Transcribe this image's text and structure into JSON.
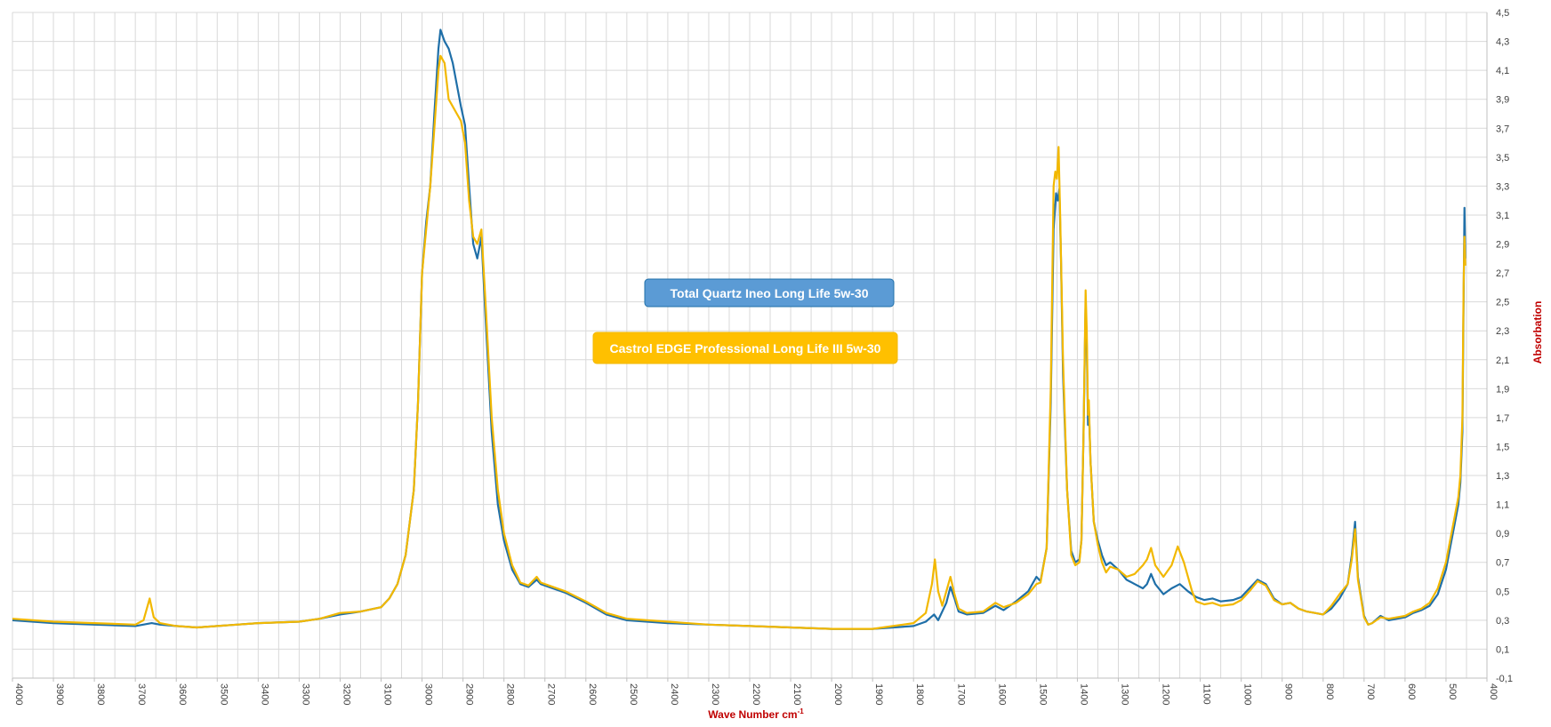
{
  "chart_data": {
    "type": "line",
    "title": "",
    "xlabel": "Wave Number cm",
    "xlabel_superscript": "-1",
    "ylabel": "Absorbation",
    "xlim": [
      4000,
      400
    ],
    "ylim": [
      -0.1,
      4.5
    ],
    "x_reversed": true,
    "grid": true,
    "legend_placement": "center",
    "x_ticks": [
      "4000",
      "3900",
      "3800",
      "3700",
      "3600",
      "3500",
      "3400",
      "3300",
      "3200",
      "3100",
      "3000",
      "2900",
      "2800",
      "2700",
      "2600",
      "2500",
      "2400",
      "2300",
      "2200",
      "2100",
      "2000",
      "1900",
      "1800",
      "1700",
      "1600",
      "1500",
      "1400",
      "1300",
      "1200",
      "1100",
      "1000",
      "900",
      "800",
      "700",
      "600",
      "500",
      "400"
    ],
    "y_ticks": [
      "-0,1",
      "0,1",
      "0,3",
      "0,5",
      "0,7",
      "0,9",
      "1,1",
      "1,3",
      "1,5",
      "1,7",
      "1,9",
      "2,1",
      "2,3",
      "2,5",
      "2,7",
      "2,9",
      "3,1",
      "3,3",
      "3,5",
      "3,7",
      "3,9",
      "4,1",
      "4,3",
      "4,5"
    ],
    "series": [
      {
        "name": "Total Quartz Ineo Long Life 5w-30",
        "color": "#1f6fa8",
        "legend_bg": "#5b9bd5",
        "points": [
          [
            4000,
            0.3
          ],
          [
            3900,
            0.28
          ],
          [
            3800,
            0.27
          ],
          [
            3700,
            0.26
          ],
          [
            3660,
            0.28
          ],
          [
            3640,
            0.27
          ],
          [
            3600,
            0.26
          ],
          [
            3550,
            0.25
          ],
          [
            3500,
            0.26
          ],
          [
            3400,
            0.28
          ],
          [
            3300,
            0.29
          ],
          [
            3250,
            0.31
          ],
          [
            3200,
            0.34
          ],
          [
            3150,
            0.36
          ],
          [
            3100,
            0.39
          ],
          [
            3080,
            0.45
          ],
          [
            3060,
            0.55
          ],
          [
            3040,
            0.75
          ],
          [
            3020,
            1.2
          ],
          [
            3010,
            1.8
          ],
          [
            3000,
            2.7
          ],
          [
            2990,
            3.05
          ],
          [
            2980,
            3.3
          ],
          [
            2970,
            3.8
          ],
          [
            2960,
            4.25
          ],
          [
            2955,
            4.38
          ],
          [
            2945,
            4.3
          ],
          [
            2935,
            4.25
          ],
          [
            2925,
            4.15
          ],
          [
            2915,
            4.0
          ],
          [
            2905,
            3.85
          ],
          [
            2895,
            3.72
          ],
          [
            2885,
            3.3
          ],
          [
            2875,
            2.9
          ],
          [
            2865,
            2.8
          ],
          [
            2855,
            2.95
          ],
          [
            2845,
            2.4
          ],
          [
            2830,
            1.6
          ],
          [
            2815,
            1.1
          ],
          [
            2800,
            0.85
          ],
          [
            2780,
            0.65
          ],
          [
            2760,
            0.55
          ],
          [
            2740,
            0.53
          ],
          [
            2720,
            0.58
          ],
          [
            2710,
            0.55
          ],
          [
            2690,
            0.53
          ],
          [
            2650,
            0.49
          ],
          [
            2600,
            0.42
          ],
          [
            2550,
            0.34
          ],
          [
            2500,
            0.3
          ],
          [
            2400,
            0.28
          ],
          [
            2300,
            0.27
          ],
          [
            2200,
            0.26
          ],
          [
            2100,
            0.25
          ],
          [
            2000,
            0.24
          ],
          [
            1900,
            0.24
          ],
          [
            1850,
            0.25
          ],
          [
            1800,
            0.26
          ],
          [
            1770,
            0.29
          ],
          [
            1750,
            0.34
          ],
          [
            1740,
            0.3
          ],
          [
            1720,
            0.42
          ],
          [
            1710,
            0.53
          ],
          [
            1700,
            0.45
          ],
          [
            1690,
            0.36
          ],
          [
            1670,
            0.34
          ],
          [
            1630,
            0.35
          ],
          [
            1600,
            0.4
          ],
          [
            1580,
            0.37
          ],
          [
            1550,
            0.43
          ],
          [
            1520,
            0.5
          ],
          [
            1500,
            0.6
          ],
          [
            1490,
            0.57
          ],
          [
            1475,
            0.8
          ],
          [
            1465,
            1.8
          ],
          [
            1458,
            3.0
          ],
          [
            1452,
            3.25
          ],
          [
            1448,
            3.2
          ],
          [
            1444,
            3.28
          ],
          [
            1440,
            2.8
          ],
          [
            1435,
            2.0
          ],
          [
            1425,
            1.2
          ],
          [
            1415,
            0.78
          ],
          [
            1405,
            0.7
          ],
          [
            1395,
            0.72
          ],
          [
            1390,
            0.85
          ],
          [
            1385,
            1.6
          ],
          [
            1380,
            2.5
          ],
          [
            1377,
            2.2
          ],
          [
            1374,
            1.65
          ],
          [
            1372,
            1.78
          ],
          [
            1368,
            1.4
          ],
          [
            1360,
            0.98
          ],
          [
            1350,
            0.85
          ],
          [
            1340,
            0.75
          ],
          [
            1330,
            0.68
          ],
          [
            1320,
            0.7
          ],
          [
            1300,
            0.65
          ],
          [
            1280,
            0.58
          ],
          [
            1260,
            0.55
          ],
          [
            1240,
            0.52
          ],
          [
            1230,
            0.55
          ],
          [
            1220,
            0.62
          ],
          [
            1210,
            0.55
          ],
          [
            1190,
            0.48
          ],
          [
            1170,
            0.52
          ],
          [
            1150,
            0.55
          ],
          [
            1130,
            0.5
          ],
          [
            1110,
            0.46
          ],
          [
            1090,
            0.44
          ],
          [
            1070,
            0.45
          ],
          [
            1050,
            0.43
          ],
          [
            1020,
            0.44
          ],
          [
            1000,
            0.46
          ],
          [
            980,
            0.52
          ],
          [
            960,
            0.58
          ],
          [
            940,
            0.55
          ],
          [
            920,
            0.45
          ],
          [
            900,
            0.41
          ],
          [
            880,
            0.42
          ],
          [
            860,
            0.38
          ],
          [
            840,
            0.36
          ],
          [
            820,
            0.35
          ],
          [
            800,
            0.34
          ],
          [
            780,
            0.38
          ],
          [
            760,
            0.45
          ],
          [
            740,
            0.55
          ],
          [
            730,
            0.75
          ],
          [
            722,
            0.98
          ],
          [
            715,
            0.6
          ],
          [
            700,
            0.33
          ],
          [
            690,
            0.27
          ],
          [
            680,
            0.28
          ],
          [
            660,
            0.33
          ],
          [
            640,
            0.3
          ],
          [
            620,
            0.31
          ],
          [
            600,
            0.32
          ],
          [
            580,
            0.35
          ],
          [
            560,
            0.37
          ],
          [
            540,
            0.4
          ],
          [
            520,
            0.48
          ],
          [
            500,
            0.65
          ],
          [
            490,
            0.8
          ],
          [
            480,
            0.95
          ],
          [
            470,
            1.1
          ],
          [
            465,
            1.25
          ],
          [
            460,
            1.6
          ],
          [
            457,
            2.5
          ],
          [
            455,
            3.15
          ],
          [
            453,
            2.8
          ]
        ]
      },
      {
        "name": "Castrol EDGE Professional Long Life III 5w-30",
        "color": "#f2b800",
        "legend_bg": "#ffc000",
        "points": [
          [
            4000,
            0.31
          ],
          [
            3900,
            0.29
          ],
          [
            3800,
            0.28
          ],
          [
            3700,
            0.27
          ],
          [
            3680,
            0.3
          ],
          [
            3665,
            0.45
          ],
          [
            3655,
            0.32
          ],
          [
            3640,
            0.28
          ],
          [
            3600,
            0.26
          ],
          [
            3550,
            0.25
          ],
          [
            3500,
            0.26
          ],
          [
            3400,
            0.28
          ],
          [
            3300,
            0.29
          ],
          [
            3250,
            0.31
          ],
          [
            3200,
            0.35
          ],
          [
            3150,
            0.36
          ],
          [
            3100,
            0.39
          ],
          [
            3080,
            0.45
          ],
          [
            3060,
            0.55
          ],
          [
            3040,
            0.75
          ],
          [
            3020,
            1.2
          ],
          [
            3010,
            1.8
          ],
          [
            3000,
            2.7
          ],
          [
            2990,
            3.0
          ],
          [
            2980,
            3.3
          ],
          [
            2970,
            3.7
          ],
          [
            2960,
            4.1
          ],
          [
            2955,
            4.2
          ],
          [
            2945,
            4.15
          ],
          [
            2935,
            3.9
          ],
          [
            2925,
            3.85
          ],
          [
            2915,
            3.8
          ],
          [
            2905,
            3.75
          ],
          [
            2895,
            3.6
          ],
          [
            2885,
            3.2
          ],
          [
            2875,
            2.95
          ],
          [
            2865,
            2.9
          ],
          [
            2855,
            3.0
          ],
          [
            2845,
            2.5
          ],
          [
            2830,
            1.7
          ],
          [
            2815,
            1.2
          ],
          [
            2800,
            0.9
          ],
          [
            2780,
            0.68
          ],
          [
            2760,
            0.56
          ],
          [
            2740,
            0.54
          ],
          [
            2720,
            0.6
          ],
          [
            2710,
            0.56
          ],
          [
            2690,
            0.54
          ],
          [
            2650,
            0.5
          ],
          [
            2600,
            0.43
          ],
          [
            2550,
            0.35
          ],
          [
            2500,
            0.31
          ],
          [
            2400,
            0.29
          ],
          [
            2300,
            0.27
          ],
          [
            2200,
            0.26
          ],
          [
            2100,
            0.25
          ],
          [
            2000,
            0.24
          ],
          [
            1900,
            0.24
          ],
          [
            1850,
            0.26
          ],
          [
            1800,
            0.28
          ],
          [
            1770,
            0.35
          ],
          [
            1755,
            0.55
          ],
          [
            1748,
            0.72
          ],
          [
            1740,
            0.5
          ],
          [
            1730,
            0.4
          ],
          [
            1720,
            0.5
          ],
          [
            1710,
            0.6
          ],
          [
            1700,
            0.48
          ],
          [
            1690,
            0.38
          ],
          [
            1670,
            0.35
          ],
          [
            1630,
            0.36
          ],
          [
            1600,
            0.42
          ],
          [
            1580,
            0.39
          ],
          [
            1550,
            0.42
          ],
          [
            1520,
            0.48
          ],
          [
            1500,
            0.55
          ],
          [
            1490,
            0.56
          ],
          [
            1475,
            0.8
          ],
          [
            1465,
            1.9
          ],
          [
            1458,
            3.3
          ],
          [
            1454,
            3.4
          ],
          [
            1450,
            3.35
          ],
          [
            1446,
            3.57
          ],
          [
            1442,
            3.1
          ],
          [
            1435,
            2.1
          ],
          [
            1425,
            1.2
          ],
          [
            1415,
            0.75
          ],
          [
            1405,
            0.68
          ],
          [
            1395,
            0.7
          ],
          [
            1390,
            0.85
          ],
          [
            1385,
            1.6
          ],
          [
            1380,
            2.58
          ],
          [
            1377,
            2.3
          ],
          [
            1374,
            1.72
          ],
          [
            1372,
            1.82
          ],
          [
            1368,
            1.4
          ],
          [
            1360,
            0.98
          ],
          [
            1350,
            0.82
          ],
          [
            1340,
            0.7
          ],
          [
            1330,
            0.63
          ],
          [
            1320,
            0.67
          ],
          [
            1300,
            0.65
          ],
          [
            1280,
            0.6
          ],
          [
            1260,
            0.62
          ],
          [
            1240,
            0.68
          ],
          [
            1230,
            0.72
          ],
          [
            1220,
            0.8
          ],
          [
            1210,
            0.68
          ],
          [
            1190,
            0.6
          ],
          [
            1170,
            0.68
          ],
          [
            1155,
            0.81
          ],
          [
            1140,
            0.7
          ],
          [
            1120,
            0.5
          ],
          [
            1110,
            0.43
          ],
          [
            1090,
            0.41
          ],
          [
            1070,
            0.42
          ],
          [
            1050,
            0.4
          ],
          [
            1020,
            0.41
          ],
          [
            1000,
            0.44
          ],
          [
            980,
            0.5
          ],
          [
            960,
            0.57
          ],
          [
            940,
            0.54
          ],
          [
            920,
            0.44
          ],
          [
            900,
            0.41
          ],
          [
            880,
            0.42
          ],
          [
            860,
            0.38
          ],
          [
            840,
            0.36
          ],
          [
            820,
            0.35
          ],
          [
            800,
            0.34
          ],
          [
            780,
            0.4
          ],
          [
            760,
            0.48
          ],
          [
            740,
            0.55
          ],
          [
            730,
            0.72
          ],
          [
            722,
            0.93
          ],
          [
            715,
            0.58
          ],
          [
            700,
            0.32
          ],
          [
            690,
            0.27
          ],
          [
            680,
            0.28
          ],
          [
            660,
            0.32
          ],
          [
            640,
            0.31
          ],
          [
            620,
            0.32
          ],
          [
            600,
            0.33
          ],
          [
            580,
            0.36
          ],
          [
            560,
            0.38
          ],
          [
            540,
            0.42
          ],
          [
            520,
            0.52
          ],
          [
            500,
            0.7
          ],
          [
            490,
            0.85
          ],
          [
            480,
            1.0
          ],
          [
            470,
            1.15
          ],
          [
            465,
            1.3
          ],
          [
            460,
            1.7
          ],
          [
            457,
            2.6
          ],
          [
            455,
            2.95
          ],
          [
            453,
            2.75
          ]
        ]
      }
    ]
  }
}
